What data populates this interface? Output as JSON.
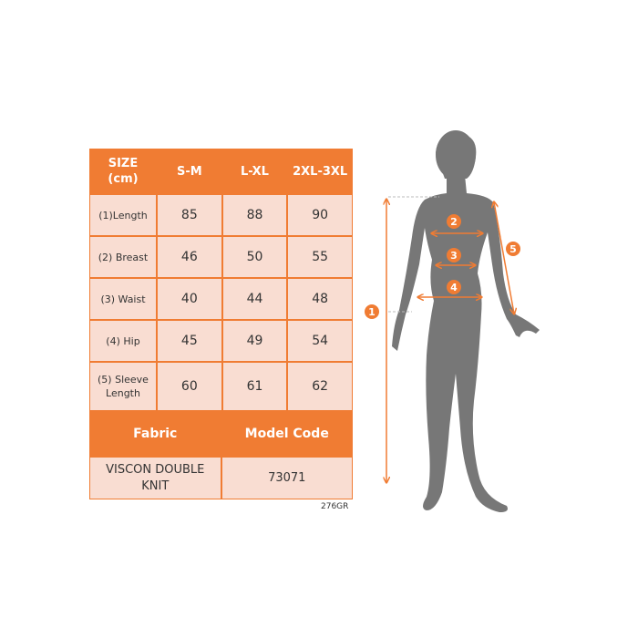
{
  "table": {
    "header": [
      "SIZE\n(cm)",
      "S-M",
      "L-XL",
      "2XL-3XL"
    ],
    "rows": [
      {
        "label": "(1)Length",
        "values": [
          "85",
          "88",
          "90"
        ]
      },
      {
        "label": "(2) Breast",
        "values": [
          "46",
          "50",
          "55"
        ]
      },
      {
        "label": "(3) Waist",
        "values": [
          "40",
          "44",
          "48"
        ]
      },
      {
        "label": "(4) Hip",
        "values": [
          "45",
          "49",
          "54"
        ]
      },
      {
        "label": "(5) Sleeve Length",
        "values": [
          "60",
          "61",
          "62"
        ]
      }
    ],
    "fabric_header": "Fabric",
    "model_code_header": "Model Code",
    "fabric_value": "VISCON DOUBLE KNIT",
    "model_code_value": "73071"
  },
  "product_code": "276GR",
  "figure": {
    "markers": [
      "1",
      "2",
      "3",
      "4",
      "5"
    ],
    "accent_color": "#F07C33",
    "silhouette_color": "#777777"
  }
}
